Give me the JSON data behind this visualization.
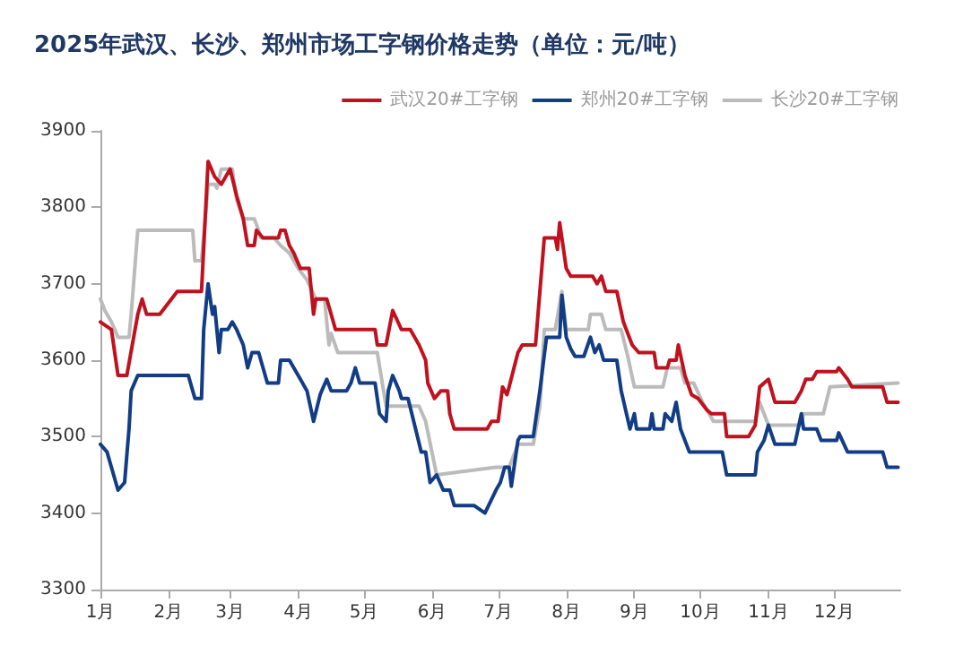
{
  "chart_data": {
    "type": "line",
    "title": "2025年武汉、长沙、郑州市场工字钢价格走势（单位：元/吨）",
    "series": [
      {
        "name": "武汉20#工字钢",
        "color": "#c0121e",
        "x": [
          "2025-01-01",
          "2025-01-06",
          "2025-01-09",
          "2025-01-13",
          "2025-01-18",
          "2025-01-20",
          "2025-01-22",
          "2025-01-28",
          "2025-02-05",
          "2025-02-16",
          "2025-02-19",
          "2025-02-22",
          "2025-02-25",
          "2025-03-01",
          "2025-03-04",
          "2025-03-07",
          "2025-03-09",
          "2025-03-12",
          "2025-03-13",
          "2025-03-16",
          "2025-03-23",
          "2025-03-24",
          "2025-03-26",
          "2025-03-28",
          "2025-03-30",
          "2025-04-02",
          "2025-04-06",
          "2025-04-08",
          "2025-04-09",
          "2025-04-14",
          "2025-04-16",
          "2025-04-18",
          "2025-05-06",
          "2025-05-07",
          "2025-05-11",
          "2025-05-14",
          "2025-05-18",
          "2025-05-22",
          "2025-05-26",
          "2025-05-29",
          "2025-05-30",
          "2025-06-02",
          "2025-06-05",
          "2025-06-08",
          "2025-06-09",
          "2025-06-11",
          "2025-06-26",
          "2025-06-28",
          "2025-07-01",
          "2025-07-03",
          "2025-07-05",
          "2025-07-06",
          "2025-07-10",
          "2025-07-12",
          "2025-07-18",
          "2025-07-22",
          "2025-07-27",
          "2025-07-28",
          "2025-07-29",
          "2025-07-30",
          "2025-08-01",
          "2025-08-03",
          "2025-08-13",
          "2025-08-15",
          "2025-08-17",
          "2025-08-19",
          "2025-08-24",
          "2025-08-27",
          "2025-08-31",
          "2025-09-03",
          "2025-09-10",
          "2025-09-11",
          "2025-09-16",
          "2025-09-17",
          "2025-09-20",
          "2025-09-21",
          "2025-09-24",
          "2025-09-27",
          "2025-09-30",
          "2025-10-04",
          "2025-10-06",
          "2025-10-12",
          "2025-10-13",
          "2025-10-23",
          "2025-10-26",
          "2025-10-28",
          "2025-11-01",
          "2025-11-04",
          "2025-11-13",
          "2025-11-16",
          "2025-11-18",
          "2025-11-21",
          "2025-11-23",
          "2025-12-02",
          "2025-12-03",
          "2025-12-07",
          "2025-12-09",
          "2025-12-23",
          "2025-12-25",
          "2025-12-30"
        ],
        "values": [
          3650,
          3640,
          3580,
          3580,
          3660,
          3680,
          3660,
          3660,
          3690,
          3690,
          3860,
          3840,
          3830,
          3850,
          3815,
          3785,
          3750,
          3750,
          3770,
          3760,
          3760,
          3770,
          3770,
          3750,
          3740,
          3720,
          3720,
          3660,
          3680,
          3680,
          3660,
          3640,
          3640,
          3620,
          3620,
          3665,
          3640,
          3640,
          3620,
          3600,
          3570,
          3550,
          3560,
          3560,
          3530,
          3510,
          3510,
          3520,
          3520,
          3565,
          3555,
          3565,
          3610,
          3620,
          3620,
          3760,
          3760,
          3745,
          3780,
          3760,
          3720,
          3710,
          3710,
          3700,
          3710,
          3690,
          3690,
          3650,
          3620,
          3610,
          3610,
          3590,
          3590,
          3600,
          3600,
          3620,
          3580,
          3555,
          3550,
          3535,
          3530,
          3530,
          3500,
          3500,
          3515,
          3565,
          3575,
          3545,
          3545,
          3560,
          3575,
          3575,
          3585,
          3585,
          3590,
          3575,
          3565,
          3565,
          3545,
          3545
        ]
      },
      {
        "name": "郑州20#工字钢",
        "color": "#123d86",
        "x": [
          "2025-01-01",
          "2025-01-04",
          "2025-01-06",
          "2025-01-09",
          "2025-01-12",
          "2025-01-14",
          "2025-01-15",
          "2025-01-18",
          "2025-02-10",
          "2025-02-12",
          "2025-02-13",
          "2025-02-16",
          "2025-02-17",
          "2025-02-19",
          "2025-02-21",
          "2025-02-22",
          "2025-02-24",
          "2025-02-25",
          "2025-02-28",
          "2025-03-02",
          "2025-03-04",
          "2025-03-07",
          "2025-03-09",
          "2025-03-11",
          "2025-03-14",
          "2025-03-16",
          "2025-03-18",
          "2025-03-23",
          "2025-03-24",
          "2025-03-28",
          "2025-03-30",
          "2025-04-02",
          "2025-04-05",
          "2025-04-08",
          "2025-04-11",
          "2025-04-14",
          "2025-04-16",
          "2025-04-23",
          "2025-04-25",
          "2025-04-27",
          "2025-04-29",
          "2025-05-06",
          "2025-05-08",
          "2025-05-11",
          "2025-05-12",
          "2025-05-14",
          "2025-05-17",
          "2025-05-18",
          "2025-05-21",
          "2025-05-24",
          "2025-05-27",
          "2025-05-29",
          "2025-05-31",
          "2025-06-03",
          "2025-06-06",
          "2025-06-09",
          "2025-06-11",
          "2025-06-20",
          "2025-06-25",
          "2025-06-30",
          "2025-07-02",
          "2025-07-04",
          "2025-07-06",
          "2025-07-07",
          "2025-07-10",
          "2025-07-11",
          "2025-07-17",
          "2025-07-20",
          "2025-07-23",
          "2025-07-29",
          "2025-07-30",
          "2025-08-01",
          "2025-08-03",
          "2025-08-05",
          "2025-08-09",
          "2025-08-12",
          "2025-08-14",
          "2025-08-16",
          "2025-08-18",
          "2025-08-24",
          "2025-08-26",
          "2025-08-28",
          "2025-08-30",
          "2025-09-01",
          "2025-09-02",
          "2025-09-08",
          "2025-09-09",
          "2025-09-10",
          "2025-09-14",
          "2025-09-15",
          "2025-09-18",
          "2025-09-20",
          "2025-09-22",
          "2025-09-26",
          "2025-10-11",
          "2025-10-13",
          "2025-10-26",
          "2025-10-27",
          "2025-10-30",
          "2025-11-01",
          "2025-11-04",
          "2025-11-13",
          "2025-11-16",
          "2025-11-17",
          "2025-11-23",
          "2025-11-25",
          "2025-12-02",
          "2025-12-03",
          "2025-12-07",
          "2025-12-23",
          "2025-12-25",
          "2025-12-30"
        ],
        "values": [
          3490,
          3480,
          3460,
          3430,
          3440,
          3510,
          3560,
          3580,
          3580,
          3560,
          3550,
          3550,
          3640,
          3700,
          3660,
          3670,
          3610,
          3640,
          3640,
          3650,
          3640,
          3620,
          3590,
          3610,
          3610,
          3590,
          3570,
          3570,
          3600,
          3600,
          3590,
          3575,
          3560,
          3520,
          3555,
          3575,
          3560,
          3560,
          3570,
          3590,
          3570,
          3570,
          3530,
          3520,
          3560,
          3580,
          3560,
          3550,
          3550,
          3515,
          3480,
          3480,
          3440,
          3450,
          3430,
          3430,
          3410,
          3410,
          3400,
          3430,
          3440,
          3460,
          3460,
          3435,
          3495,
          3500,
          3500,
          3560,
          3630,
          3630,
          3685,
          3630,
          3615,
          3605,
          3605,
          3630,
          3610,
          3620,
          3600,
          3600,
          3560,
          3535,
          3510,
          3530,
          3510,
          3510,
          3530,
          3510,
          3510,
          3530,
          3520,
          3545,
          3510,
          3480,
          3480,
          3450,
          3450,
          3480,
          3495,
          3515,
          3490,
          3490,
          3530,
          3510,
          3510,
          3495,
          3495,
          3505,
          3480,
          3480,
          3460,
          3460
        ]
      },
      {
        "name": "长沙20#工字钢",
        "color": "#bbbbbb",
        "x": [
          "2025-01-01",
          "2025-01-03",
          "2025-01-06",
          "2025-01-09",
          "2025-01-14",
          "2025-01-15",
          "2025-01-18",
          "2025-02-12",
          "2025-02-13",
          "2025-02-16",
          "2025-02-18",
          "2025-02-19",
          "2025-02-22",
          "2025-02-23",
          "2025-02-25",
          "2025-03-02",
          "2025-03-04",
          "2025-03-07",
          "2025-03-12",
          "2025-03-14",
          "2025-03-15",
          "2025-03-21",
          "2025-03-24",
          "2025-03-28",
          "2025-04-01",
          "2025-04-05",
          "2025-04-09",
          "2025-04-13",
          "2025-04-15",
          "2025-04-16",
          "2025-04-19",
          "2025-05-07",
          "2025-05-11",
          "2025-05-26",
          "2025-05-29",
          "2025-06-03",
          "2025-06-30",
          "2025-07-06",
          "2025-07-10",
          "2025-07-17",
          "2025-07-20",
          "2025-07-22",
          "2025-07-27",
          "2025-07-30",
          "2025-08-01",
          "2025-08-11",
          "2025-08-12",
          "2025-08-17",
          "2025-08-19",
          "2025-08-26",
          "2025-08-29",
          "2025-09-01",
          "2025-09-14",
          "2025-09-16",
          "2025-09-22",
          "2025-09-24",
          "2025-09-28",
          "2025-10-02",
          "2025-10-07",
          "2025-10-26",
          "2025-10-28",
          "2025-11-01",
          "2025-11-16",
          "2025-11-17",
          "2025-11-26",
          "2025-11-29",
          "2025-12-30"
        ],
        "values": [
          3680,
          3665,
          3650,
          3630,
          3630,
          3660,
          3770,
          3770,
          3730,
          3730,
          3795,
          3830,
          3830,
          3825,
          3850,
          3850,
          3810,
          3785,
          3785,
          3770,
          3760,
          3760,
          3750,
          3740,
          3720,
          3705,
          3680,
          3680,
          3620,
          3635,
          3610,
          3610,
          3540,
          3540,
          3520,
          3450,
          3460,
          3460,
          3490,
          3490,
          3540,
          3640,
          3640,
          3690,
          3640,
          3640,
          3660,
          3660,
          3640,
          3640,
          3605,
          3565,
          3565,
          3590,
          3590,
          3570,
          3570,
          3545,
          3520,
          3520,
          3545,
          3515,
          3515,
          3530,
          3530,
          3565,
          3570
        ]
      }
    ],
    "xlim": [
      "2025-01-01",
      "2025-12-31"
    ],
    "xticks": [
      {
        "value": "2025-01-01",
        "label": "1月"
      },
      {
        "value": "2025-02-01",
        "label": "2月"
      },
      {
        "value": "2025-03-01",
        "label": "3月"
      },
      {
        "value": "2025-04-01",
        "label": "4月"
      },
      {
        "value": "2025-05-01",
        "label": "5月"
      },
      {
        "value": "2025-06-01",
        "label": "6月"
      },
      {
        "value": "2025-07-01",
        "label": "7月"
      },
      {
        "value": "2025-08-01",
        "label": "8月"
      },
      {
        "value": "2025-09-01",
        "label": "9月"
      },
      {
        "value": "2025-10-01",
        "label": "10月"
      },
      {
        "value": "2025-11-01",
        "label": "11月"
      },
      {
        "value": "2025-12-01",
        "label": "12月"
      }
    ],
    "ylim": [
      3300,
      3900
    ],
    "yticks": [
      3300,
      3400,
      3500,
      3600,
      3700,
      3800,
      3900
    ],
    "grid": false,
    "legend": "top right",
    "marker": "none",
    "line_style": "solid"
  }
}
